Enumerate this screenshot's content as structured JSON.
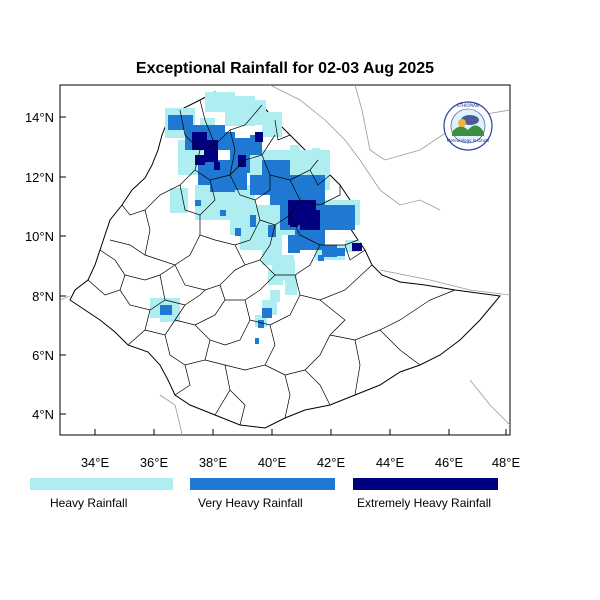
{
  "map": {
    "title": "Exceptional Rainfall for 02-03 Aug 2025",
    "x_ticks": [
      "34°E",
      "36°E",
      "38°E",
      "40°E",
      "42°E",
      "44°E",
      "46°E",
      "48°E"
    ],
    "y_ticks": [
      "14°N",
      "12°N",
      "10°N",
      "8°N",
      "6°N",
      "4°N"
    ],
    "longitude_range": [
      32.9,
      48.2
    ],
    "latitude_range": [
      3.2,
      15.0
    ]
  },
  "legend": [
    {
      "label": "Heavy Rainfall",
      "color": "#aeeef0"
    },
    {
      "label": "Very Heavy Rainfall",
      "color": "#1f78d1"
    },
    {
      "label": "Extremely Heavy Rainfall",
      "color": "#000080"
    }
  ],
  "logo": {
    "name": "agency-logo",
    "line1": "ETHIOPIAN",
    "line2": "Meteorology Institute"
  }
}
